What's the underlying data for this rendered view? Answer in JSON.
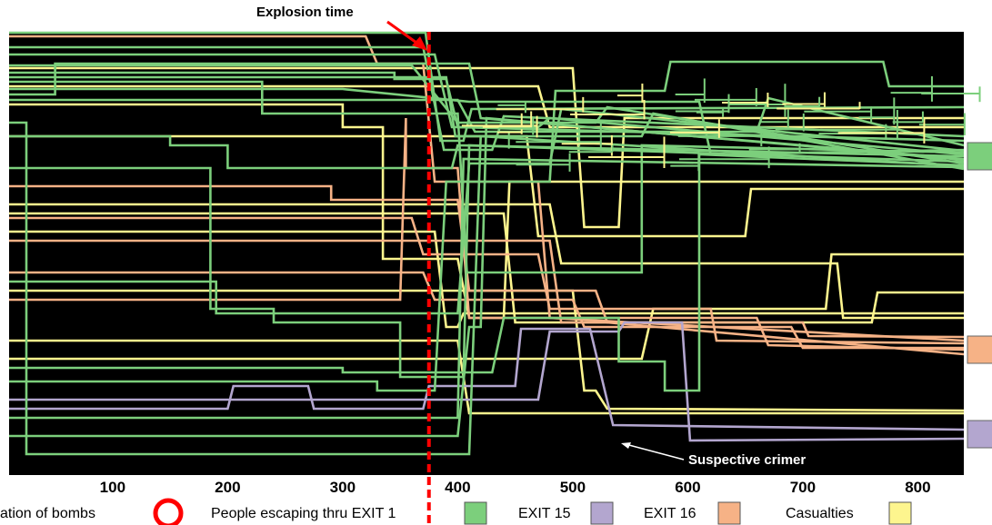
{
  "chart_data": {
    "type": "line",
    "xlim": [
      10,
      840
    ],
    "x_ticks": [
      100,
      200,
      300,
      400,
      500,
      600,
      700,
      800
    ],
    "grid": false,
    "background": "#000000",
    "legend_placement": "bottom",
    "explosion_x": 375,
    "annotations": {
      "explosion": "Explosion time",
      "suspect": "Suspective crimer"
    },
    "legend": [
      {
        "label": "ation of bombs",
        "marker": "circle",
        "color": "#ff0000"
      },
      {
        "label": "People escaping thru EXIT 1",
        "marker": "square",
        "color": "#7ccf7c"
      },
      {
        "label": "EXIT 15",
        "marker": "square",
        "color": "#b3a6cf"
      },
      {
        "label": "EXIT 16",
        "marker": "square",
        "color": "#f6b286"
      },
      {
        "label": "Casualties",
        "marker": "square",
        "color": "#fdf58e"
      }
    ],
    "colors": {
      "exit1": "#7ccf7c",
      "exit15": "#b3a6cf",
      "exit16": "#f6b286",
      "casualty": "#fdf58e",
      "explosion_line": "#ff0000"
    },
    "series": [
      {
        "group": "exit1",
        "points": [
          [
            10,
            36
          ],
          [
            372,
            36
          ],
          [
            385,
            155
          ],
          [
            405,
            155
          ],
          [
            412,
            120
          ],
          [
            840,
            118
          ]
        ]
      },
      {
        "group": "exit1",
        "points": [
          [
            10,
            52
          ],
          [
            370,
            52
          ],
          [
            388,
            165
          ],
          [
            430,
            165
          ],
          [
            440,
            128
          ],
          [
            840,
            150
          ]
        ]
      },
      {
        "group": "exit1",
        "points": [
          [
            10,
            60
          ],
          [
            380,
            60
          ],
          [
            395,
            140
          ],
          [
            470,
            140
          ],
          [
            480,
            130
          ],
          [
            840,
            170
          ]
        ]
      },
      {
        "group": "exit1",
        "points": [
          [
            10,
            72
          ],
          [
            360,
            72
          ],
          [
            400,
            135
          ],
          [
            520,
            135
          ],
          [
            530,
            118
          ],
          [
            840,
            180
          ]
        ]
      },
      {
        "group": "exit1",
        "points": [
          [
            10,
            85
          ],
          [
            390,
            85
          ],
          [
            398,
            150
          ],
          [
            560,
            150
          ],
          [
            570,
            125
          ],
          [
            840,
            186
          ]
        ]
      },
      {
        "group": "exit1",
        "points": [
          [
            10,
            98
          ],
          [
            300,
            98
          ],
          [
            410,
            112
          ],
          [
            610,
            112
          ],
          [
            620,
            170
          ],
          [
            840,
            165
          ]
        ]
      },
      {
        "group": "exit1",
        "points": [
          [
            10,
            104
          ],
          [
            50,
            104
          ],
          [
            50,
            70
          ],
          [
            410,
            70
          ],
          [
            420,
            130
          ],
          [
            840,
            175
          ]
        ]
      },
      {
        "group": "exit1",
        "points": [
          [
            10,
            110
          ],
          [
            400,
            110
          ],
          [
            415,
            145
          ],
          [
            660,
            145
          ],
          [
            670,
            108
          ],
          [
            840,
            160
          ]
        ]
      },
      {
        "group": "exit1",
        "points": [
          [
            10,
            135
          ],
          [
            25,
            135
          ],
          [
            25,
            500
          ],
          [
            410,
            500
          ],
          [
            420,
            150
          ],
          [
            840,
            183
          ]
        ]
      },
      {
        "group": "exit1",
        "points": [
          [
            10,
            150
          ],
          [
            150,
            150
          ],
          [
            150,
            160
          ],
          [
            200,
            160
          ],
          [
            200,
            185
          ],
          [
            395,
            185
          ],
          [
            400,
            160
          ],
          [
            840,
            172
          ]
        ]
      },
      {
        "group": "exit1",
        "points": [
          [
            10,
            185
          ],
          [
            185,
            185
          ],
          [
            185,
            340
          ],
          [
            240,
            340
          ],
          [
            240,
            355
          ],
          [
            350,
            355
          ],
          [
            350,
            415
          ],
          [
            405,
            415
          ],
          [
            410,
            160
          ],
          [
            840,
            178
          ]
        ]
      },
      {
        "group": "exit1",
        "points": [
          [
            10,
            310
          ],
          [
            190,
            310
          ],
          [
            190,
            345
          ],
          [
            400,
            345
          ],
          [
            410,
            180
          ],
          [
            480,
            180
          ],
          [
            490,
            120
          ],
          [
            840,
            166
          ]
        ]
      },
      {
        "group": "exit1",
        "points": [
          [
            10,
            405
          ],
          [
            300,
            405
          ],
          [
            300,
            410
          ],
          [
            430,
            410
          ],
          [
            440,
            350
          ],
          [
            540,
            350
          ],
          [
            540,
            398
          ],
          [
            580,
            398
          ],
          [
            580,
            430
          ],
          [
            610,
            430
          ],
          [
            610,
            170
          ],
          [
            840,
            182
          ]
        ]
      },
      {
        "group": "exit1",
        "points": [
          [
            10,
            480
          ],
          [
            400,
            480
          ],
          [
            410,
            360
          ],
          [
            420,
            360
          ],
          [
            425,
            130
          ],
          [
            840,
            176
          ]
        ]
      },
      {
        "group": "exit1",
        "points": [
          [
            10,
            420
          ],
          [
            330,
            420
          ],
          [
            330,
            430
          ],
          [
            380,
            430
          ],
          [
            390,
            200
          ],
          [
            480,
            200
          ],
          [
            485,
            100
          ],
          [
            580,
            100
          ],
          [
            585,
            68
          ],
          [
            770,
            68
          ],
          [
            775,
            95
          ],
          [
            840,
            95
          ]
        ]
      },
      {
        "group": "exit1",
        "points": [
          [
            10,
            460
          ],
          [
            400,
            460
          ],
          [
            405,
            175
          ],
          [
            840,
            184
          ]
        ]
      },
      {
        "group": "exit1",
        "points": [
          [
            10,
            80
          ],
          [
            345,
            80
          ],
          [
            345,
            87
          ],
          [
            390,
            87
          ],
          [
            400,
            140
          ],
          [
            840,
            155
          ]
        ]
      },
      {
        "group": "exit1",
        "points": [
          [
            10,
            90
          ],
          [
            230,
            90
          ],
          [
            230,
            125
          ],
          [
            400,
            125
          ],
          [
            408,
            300
          ],
          [
            560,
            300
          ],
          [
            560,
            160
          ],
          [
            840,
            168
          ]
        ]
      },
      {
        "group": "exit16",
        "points": [
          [
            10,
            40
          ],
          [
            320,
            40
          ],
          [
            330,
            70
          ],
          [
            370,
            70
          ],
          [
            380,
            200
          ],
          [
            470,
            200
          ],
          [
            480,
            350
          ],
          [
            840,
            375
          ]
        ]
      },
      {
        "group": "exit16",
        "points": [
          [
            10,
            300
          ],
          [
            370,
            300
          ],
          [
            380,
            330
          ],
          [
            500,
            330
          ],
          [
            510,
            360
          ],
          [
            690,
            360
          ],
          [
            700,
            383
          ],
          [
            840,
            383
          ]
        ]
      },
      {
        "group": "exit16",
        "points": [
          [
            10,
            205
          ],
          [
            290,
            205
          ],
          [
            290,
            220
          ],
          [
            400,
            220
          ],
          [
            410,
            320
          ],
          [
            520,
            320
          ],
          [
            530,
            355
          ],
          [
            840,
            390
          ]
        ]
      },
      {
        "group": "exit16",
        "points": [
          [
            10,
            240
          ],
          [
            360,
            240
          ],
          [
            370,
            280
          ],
          [
            470,
            280
          ],
          [
            480,
            340
          ],
          [
            620,
            340
          ],
          [
            625,
            375
          ],
          [
            840,
            378
          ]
        ]
      },
      {
        "group": "exit16",
        "points": [
          [
            10,
            330
          ],
          [
            350,
            330
          ],
          [
            355,
            130
          ],
          [
            355,
            185
          ],
          [
            400,
            185
          ],
          [
            410,
            350
          ],
          [
            660,
            350
          ],
          [
            670,
            380
          ],
          [
            840,
            385
          ]
        ]
      },
      {
        "group": "exit16",
        "points": [
          [
            10,
            265
          ],
          [
            480,
            265
          ],
          [
            490,
            355
          ],
          [
            700,
            355
          ],
          [
            705,
            370
          ],
          [
            840,
            371
          ]
        ]
      },
      {
        "group": "casualty",
        "points": [
          [
            10,
            75
          ],
          [
            500,
            75
          ],
          [
            510,
            250
          ],
          [
            540,
            250
          ],
          [
            545,
            130
          ],
          [
            840,
            130
          ]
        ]
      },
      {
        "group": "casualty",
        "points": [
          [
            10,
            95
          ],
          [
            470,
            95
          ],
          [
            480,
            140
          ],
          [
            840,
            140
          ]
        ]
      },
      {
        "group": "casualty",
        "points": [
          [
            10,
            115
          ],
          [
            300,
            115
          ],
          [
            300,
            140
          ],
          [
            335,
            140
          ],
          [
            335,
            285
          ],
          [
            400,
            285
          ],
          [
            410,
            350
          ],
          [
            440,
            350
          ],
          [
            445,
            200
          ],
          [
            840,
            200
          ]
        ]
      },
      {
        "group": "casualty",
        "points": [
          [
            10,
            150
          ],
          [
            460,
            150
          ],
          [
            470,
            260
          ],
          [
            650,
            260
          ],
          [
            655,
            208
          ],
          [
            840,
            208
          ]
        ]
      },
      {
        "group": "casualty",
        "points": [
          [
            10,
            225
          ],
          [
            480,
            225
          ],
          [
            490,
            290
          ],
          [
            730,
            290
          ],
          [
            735,
            350
          ],
          [
            840,
            350
          ]
        ]
      },
      {
        "group": "casualty",
        "points": [
          [
            10,
            235
          ],
          [
            440,
            235
          ],
          [
            450,
            355
          ],
          [
            760,
            355
          ],
          [
            765,
            322
          ],
          [
            840,
            322
          ]
        ]
      },
      {
        "group": "casualty",
        "points": [
          [
            10,
            255
          ],
          [
            380,
            255
          ],
          [
            390,
            360
          ],
          [
            400,
            360
          ],
          [
            405,
            345
          ],
          [
            840,
            345
          ]
        ]
      },
      {
        "group": "casualty",
        "points": [
          [
            10,
            320
          ],
          [
            500,
            320
          ],
          [
            510,
            430
          ],
          [
            520,
            430
          ],
          [
            530,
            450
          ],
          [
            840,
            452
          ]
        ]
      },
      {
        "group": "casualty",
        "points": [
          [
            10,
            375
          ],
          [
            400,
            375
          ],
          [
            410,
            455
          ],
          [
            840,
            455
          ]
        ]
      },
      {
        "group": "casualty",
        "points": [
          [
            10,
            395
          ],
          [
            560,
            395
          ],
          [
            570,
            340
          ],
          [
            720,
            340
          ],
          [
            725,
            280
          ],
          [
            840,
            280
          ]
        ]
      },
      {
        "group": "exit15",
        "points": [
          [
            10,
            450
          ],
          [
            200,
            450
          ],
          [
            205,
            425
          ],
          [
            270,
            425
          ],
          [
            275,
            450
          ],
          [
            370,
            450
          ],
          [
            375,
            425
          ],
          [
            450,
            425
          ],
          [
            455,
            362
          ],
          [
            515,
            362
          ],
          [
            535,
            468
          ],
          [
            840,
            473
          ]
        ]
      },
      {
        "group": "exit15",
        "points": [
          [
            10,
            440
          ],
          [
            470,
            440
          ],
          [
            480,
            365
          ],
          [
            540,
            365
          ],
          [
            545,
            355
          ],
          [
            595,
            355
          ],
          [
            602,
            485
          ],
          [
            840,
            483
          ]
        ]
      }
    ]
  }
}
